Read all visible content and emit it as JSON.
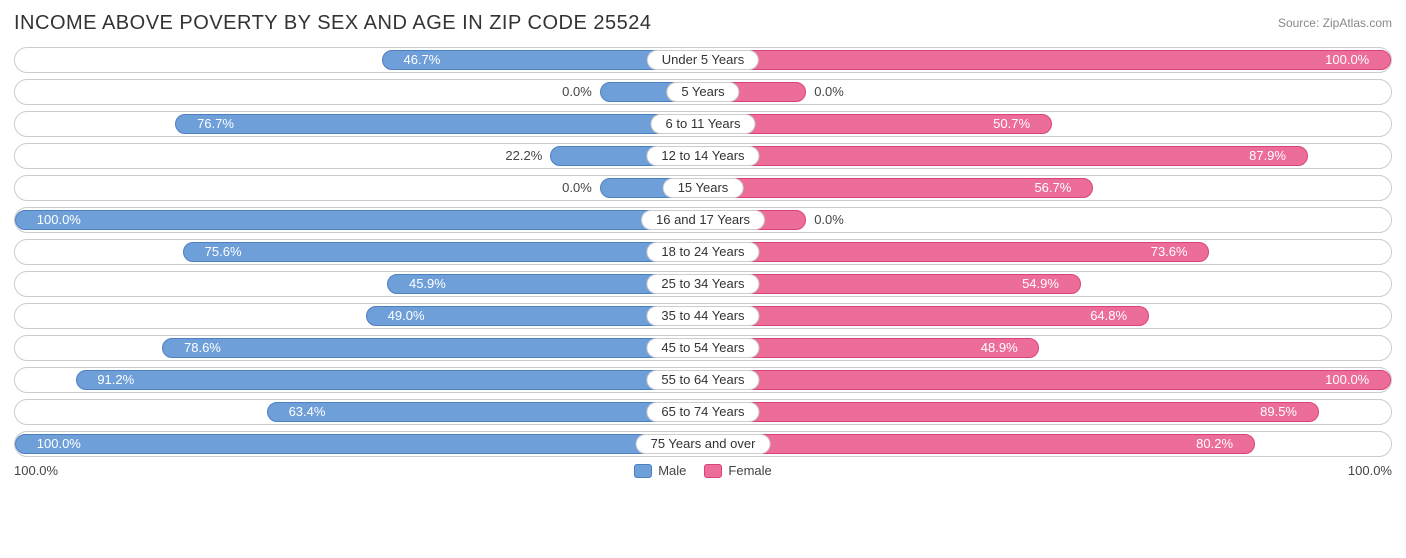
{
  "title": "INCOME ABOVE POVERTY BY SEX AND AGE IN ZIP CODE 25524",
  "source": "Source: ZipAtlas.com",
  "chart": {
    "type": "diverging-bar",
    "male_color": "#6f9fd8",
    "male_border": "#4e80c0",
    "female_color": "#ed6d9a",
    "female_border": "#d8447a",
    "track_border": "#cccccc",
    "background": "#ffffff",
    "value_fontsize": 13,
    "label_fontsize": 13,
    "min_bar_pct": 15,
    "inside_threshold": 30,
    "axis_left": "100.0%",
    "axis_right": "100.0%",
    "rows": [
      {
        "age": "Under 5 Years",
        "male": 46.7,
        "female": 100.0
      },
      {
        "age": "5 Years",
        "male": 0.0,
        "female": 0.0
      },
      {
        "age": "6 to 11 Years",
        "male": 76.7,
        "female": 50.7
      },
      {
        "age": "12 to 14 Years",
        "male": 22.2,
        "female": 87.9
      },
      {
        "age": "15 Years",
        "male": 0.0,
        "female": 56.7
      },
      {
        "age": "16 and 17 Years",
        "male": 100.0,
        "female": 0.0
      },
      {
        "age": "18 to 24 Years",
        "male": 75.6,
        "female": 73.6
      },
      {
        "age": "25 to 34 Years",
        "male": 45.9,
        "female": 54.9
      },
      {
        "age": "35 to 44 Years",
        "male": 49.0,
        "female": 64.8
      },
      {
        "age": "45 to 54 Years",
        "male": 78.6,
        "female": 48.9
      },
      {
        "age": "55 to 64 Years",
        "male": 91.2,
        "female": 100.0
      },
      {
        "age": "65 to 74 Years",
        "male": 63.4,
        "female": 89.5
      },
      {
        "age": "75 Years and over",
        "male": 100.0,
        "female": 80.2
      }
    ]
  },
  "legend": {
    "male": "Male",
    "female": "Female"
  }
}
